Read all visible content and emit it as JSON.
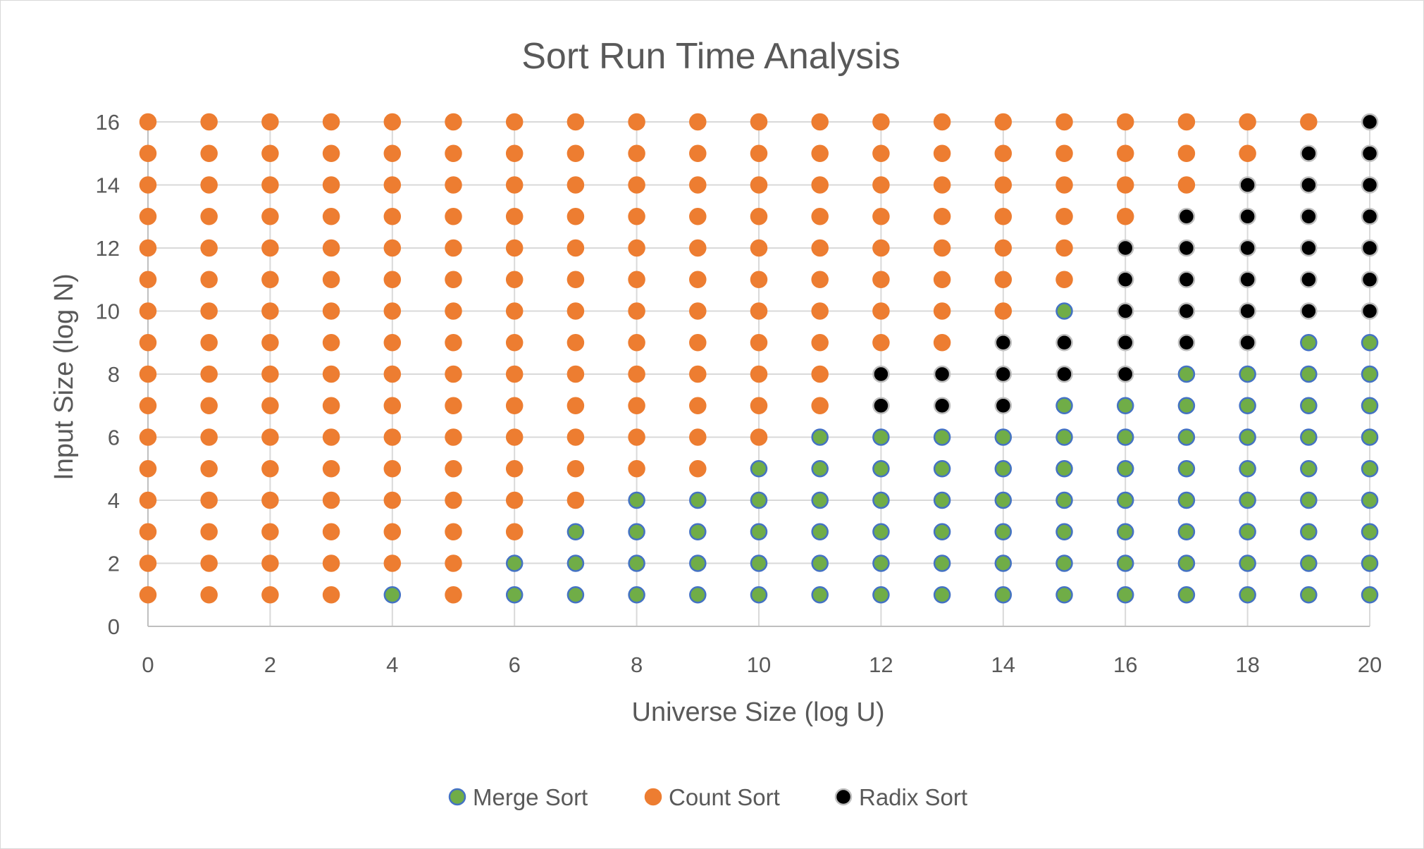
{
  "chart_data": {
    "type": "scatter",
    "title": "Sort Run Time Analysis",
    "xlabel": "Universe Size (log U)",
    "ylabel": "Input Size (log N)",
    "xlim": [
      0,
      20
    ],
    "ylim": [
      0,
      16
    ],
    "x_ticks": [
      "0",
      "2",
      "4",
      "6",
      "8",
      "10",
      "12",
      "14",
      "16",
      "18",
      "20"
    ],
    "y_ticks": [
      "0",
      "2",
      "4",
      "6",
      "8",
      "10",
      "12",
      "14",
      "16"
    ],
    "grid": true,
    "legend_position": "bottom",
    "colors": {
      "merge_fill": "#70ad47",
      "merge_edge": "#4472c4",
      "count_fill": "#ed7d31",
      "count_edge": "#ed7d31",
      "radix_fill": "#000000",
      "radix_edge": "#bfbfbf"
    },
    "grid_rows": {
      "x": [
        0,
        1,
        2,
        3,
        4,
        5,
        6,
        7,
        8,
        9,
        10,
        11,
        12,
        13,
        14,
        15,
        16,
        17,
        18,
        19,
        20
      ],
      "rows": {
        "1": "CCCCMCMMMMMMMMMMMMMMM",
        "2": "CCCCCCMMMMMMMMMMMMMMM",
        "3": "CCCCCCCMMMMMMMMMMMMMM",
        "4": "CCCCCCCCMMMMMMMMMMMMM",
        "5": "CCCCCCCCCCMMMMMMMMMMM",
        "6": "CCCCCCCCCCCMMMMMMMMMM",
        "7": "CCCCCCCCCCCCRRRMMMMMM",
        "8": "CCCCCCCCCCCCRRRRRMMMM",
        "9": "CCCCCCCCCCCCCCRRRRRMM",
        "10": "CCCCCCCCCCCCCCCMRRRRR",
        "11": "CCCCCCCCCCCCCCCCRRRRR",
        "12": "CCCCCCCCCCCCCCCCRRRRR",
        "13": "CCCCCCCCCCCCCCCCCRRRR",
        "14": "CCCCCCCCCCCCCCCCCCRRR",
        "15": "CCCCCCCCCCCCCCCCCCCRR",
        "16": "CCCCCCCCCCCCCCCCCCCCR"
      }
    },
    "series": [
      {
        "name": "Merge Sort",
        "code": "M"
      },
      {
        "name": "Count Sort",
        "code": "C"
      },
      {
        "name": "Radix Sort",
        "code": "R"
      }
    ]
  }
}
